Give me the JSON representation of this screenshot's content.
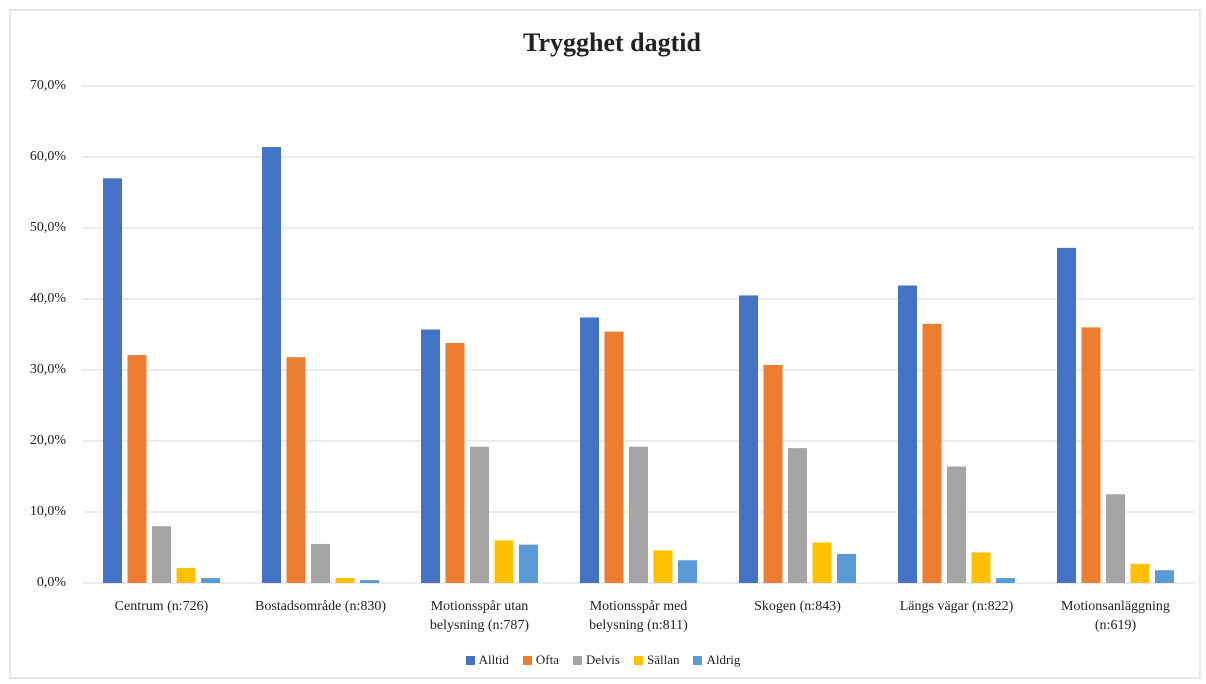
{
  "chart_data": {
    "type": "bar",
    "title": "Trygghet dagtid",
    "categories": [
      "Centrum (n:726)",
      "Bostadsområde (n:830)",
      "Motionsspår utan belysning (n:787)",
      "Motionsspår med belysning (n:811)",
      "Skogen (n:843)",
      "Längs vägar (n:822)",
      "Motionsanläggning (n:619)"
    ],
    "series": [
      {
        "name": "Alltid",
        "color": "#4472c4",
        "values": [
          57.0,
          61.4,
          35.7,
          37.4,
          40.5,
          41.9,
          47.2
        ]
      },
      {
        "name": "Ofta",
        "color": "#ed7d31",
        "values": [
          32.1,
          31.8,
          33.8,
          35.4,
          30.7,
          36.5,
          36.0
        ]
      },
      {
        "name": "Delvis",
        "color": "#a5a5a5",
        "values": [
          8.0,
          5.5,
          19.2,
          19.2,
          19.0,
          16.4,
          12.5
        ]
      },
      {
        "name": "Sällan",
        "color": "#ffc000",
        "values": [
          2.1,
          0.7,
          6.0,
          4.6,
          5.7,
          4.3,
          2.7
        ]
      },
      {
        "name": "Aldrig",
        "color": "#5b9bd5",
        "values": [
          0.7,
          0.4,
          5.4,
          3.2,
          4.1,
          0.7,
          1.8
        ]
      }
    ],
    "ylim": [
      0,
      70
    ],
    "yticks": [
      {
        "value": 0,
        "label": "0,0%"
      },
      {
        "value": 10,
        "label": "10,0%"
      },
      {
        "value": 20,
        "label": "20,0%"
      },
      {
        "value": 30,
        "label": "30,0%"
      },
      {
        "value": 40,
        "label": "40,0%"
      },
      {
        "value": 50,
        "label": "50,0%"
      },
      {
        "value": 60,
        "label": "60,0%"
      },
      {
        "value": 70,
        "label": "70,0%"
      }
    ],
    "grid": true,
    "legend": "bottom"
  }
}
